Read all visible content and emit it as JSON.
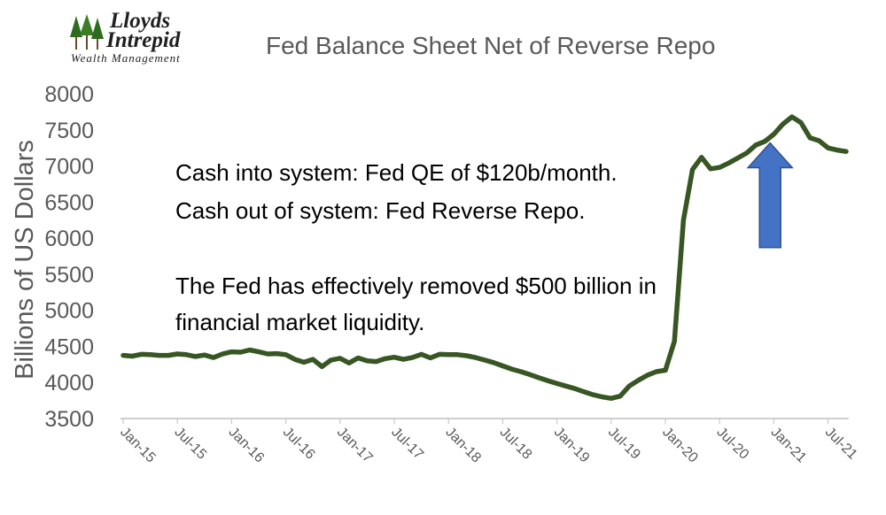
{
  "logo": {
    "line1": "Lloyds",
    "line2": "Intrepid",
    "line3": "Wealth Management"
  },
  "chart_data": {
    "type": "line",
    "title": "Fed Balance Sheet Net of Reverse Repo",
    "ylabel": "Billions of US Dollars",
    "xlabel": "",
    "ylim": [
      3500,
      8000
    ],
    "yticks": [
      3500,
      4000,
      4500,
      5000,
      5500,
      6000,
      6500,
      7000,
      7500,
      8000
    ],
    "xtick_labels": [
      "Jan-15",
      "Jul-15",
      "Jan-16",
      "Jul-16",
      "Jan-17",
      "Jul-17",
      "Jan-18",
      "Jul-18",
      "Jan-19",
      "Jul-19",
      "Jan-20",
      "Jul-20",
      "Jan-21",
      "Jul-21"
    ],
    "series_color": "#375623",
    "series": [
      {
        "x": [
          "Jan-15",
          "Feb-15",
          "Mar-15",
          "Apr-15",
          "May-15",
          "Jun-15",
          "Jul-15",
          "Aug-15",
          "Sep-15",
          "Oct-15",
          "Nov-15",
          "Dec-15",
          "Jan-16",
          "Feb-16",
          "Mar-16",
          "Apr-16",
          "May-16",
          "Jun-16",
          "Jul-16",
          "Aug-16",
          "Sep-16",
          "Oct-16",
          "Nov-16",
          "Dec-16",
          "Jan-17",
          "Feb-17",
          "Mar-17",
          "Apr-17",
          "May-17",
          "Jun-17",
          "Jul-17",
          "Aug-17",
          "Sep-17",
          "Oct-17",
          "Nov-17",
          "Dec-17",
          "Jan-18",
          "Feb-18",
          "Mar-18",
          "Apr-18",
          "May-18",
          "Jun-18",
          "Jul-18",
          "Aug-18",
          "Sep-18",
          "Oct-18",
          "Nov-18",
          "Dec-18",
          "Jan-19",
          "Feb-19",
          "Mar-19",
          "Apr-19",
          "May-19",
          "Jun-19",
          "Jul-19",
          "Aug-19",
          "Sep-19",
          "Oct-19",
          "Nov-19",
          "Dec-19",
          "Jan-20",
          "Feb-20",
          "Mar-20",
          "Apr-20",
          "May-20",
          "Jun-20",
          "Jul-20",
          "Aug-20",
          "Sep-20",
          "Oct-20",
          "Nov-20",
          "Dec-20",
          "Jan-21",
          "Feb-21",
          "Mar-21",
          "Apr-21",
          "May-21",
          "Jun-21",
          "Jul-21",
          "Aug-21",
          "Sep-21"
        ],
        "values": [
          4375,
          4365,
          4390,
          4385,
          4375,
          4375,
          4395,
          4385,
          4360,
          4380,
          4345,
          4395,
          4425,
          4420,
          4450,
          4425,
          4395,
          4400,
          4385,
          4320,
          4280,
          4320,
          4220,
          4310,
          4335,
          4270,
          4340,
          4300,
          4290,
          4330,
          4350,
          4320,
          4345,
          4390,
          4340,
          4390,
          4385,
          4385,
          4370,
          4345,
          4310,
          4275,
          4230,
          4185,
          4150,
          4110,
          4065,
          4025,
          3985,
          3950,
          3915,
          3870,
          3830,
          3800,
          3780,
          3810,
          3950,
          4030,
          4100,
          4150,
          4170,
          4570,
          6250,
          6950,
          7120,
          6960,
          6980,
          7040,
          7110,
          7180,
          7290,
          7340,
          7440,
          7580,
          7680,
          7600,
          7390,
          7350,
          7250,
          7220,
          7200
        ]
      }
    ],
    "annotations": [
      "Cash into system: Fed QE of $120b/month.",
      "Cash out of system: Fed Reverse Repo.",
      "The Fed has effectively removed $500 billion in",
      "financial market liquidity."
    ],
    "arrow": {
      "x": "Dec-20",
      "y_from": 5870,
      "y_to": 7320,
      "color": "#4472C4"
    }
  }
}
